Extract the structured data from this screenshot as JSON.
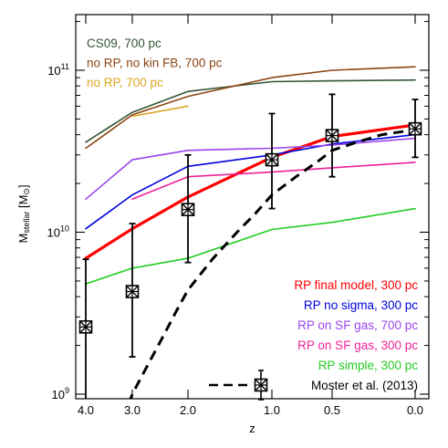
{
  "chart_data": {
    "type": "line",
    "title": "",
    "xlabel": "z",
    "ylabel": "M",
    "ylabel_sub": "stellar",
    "ylabel_unit_prefix": " [M",
    "ylabel_unit_suffix": "]",
    "y_scale": "log",
    "ylim": [
      1000000000.0,
      160000000000.0
    ],
    "x_ticks": [
      "4.0",
      "3.0",
      "2.0",
      "1.0",
      "0.5",
      "0.0"
    ],
    "y_ticks": [
      {
        "value": 1000000000.0,
        "base": "10",
        "exp": "9"
      },
      {
        "value": 10000000000.0,
        "base": "10",
        "exp": "10"
      },
      {
        "value": 100000000000.0,
        "base": "10",
        "exp": "11"
      }
    ],
    "grid": false,
    "series": [
      {
        "name": "CS09, 700 pc",
        "color": "#335533",
        "width": 1.6,
        "dash": "",
        "legend_loc": "top-left",
        "x": [
          "4.0",
          "3.0",
          "2.0",
          "1.0",
          "0.5",
          "0.0"
        ],
        "values": [
          36000000000.0,
          55000000000.0,
          74000000000.0,
          85000000000.0,
          86000000000.0,
          87000000000.0
        ]
      },
      {
        "name": "no RP, no kin FB, 700 pc",
        "color": "#8b4513",
        "width": 1.6,
        "dash": "",
        "legend_loc": "top-left",
        "x": [
          "4.0",
          "3.0",
          "2.0",
          "1.0",
          "0.5",
          "0.0"
        ],
        "values": [
          33000000000.0,
          53000000000.0,
          69000000000.0,
          90000000000.0,
          100000000000.0,
          105000000000.0
        ]
      },
      {
        "name": "no RP, 700 pc",
        "color": "#daa520",
        "width": 1.6,
        "dash": "",
        "legend_loc": "top-left",
        "x": [
          "3.0",
          "2.0"
        ],
        "values": [
          52000000000.0,
          60000000000.0
        ]
      },
      {
        "name": "RP final model, 300 pc",
        "color": "#ff0000",
        "width": 3.2,
        "dash": "",
        "legend_loc": "bottom-right",
        "x": [
          "4.0",
          "3.0",
          "2.0",
          "1.0",
          "0.5",
          "0.0"
        ],
        "values": [
          6900000000.0,
          10500000000.0,
          16500000000.0,
          29000000000.0,
          39000000000.0,
          46000000000.0
        ]
      },
      {
        "name": "RP no sigma, 300 pc",
        "color": "#0000dd",
        "width": 1.6,
        "dash": "",
        "legend_loc": "bottom-right",
        "x": [
          "4.0",
          "3.0",
          "2.0",
          "1.0",
          "0.5",
          "0.0"
        ],
        "values": [
          10500000000.0,
          17000000000.0,
          25500000000.0,
          30000000000.0,
          35000000000.0,
          40000000000.0
        ]
      },
      {
        "name": "RP on SF gas, 700 pc",
        "color": "#9944ee",
        "width": 1.6,
        "dash": "",
        "legend_loc": "bottom-right",
        "x": [
          "4.0",
          "3.0",
          "2.0",
          "1.0",
          "0.5",
          "0.0"
        ],
        "values": [
          16000000000.0,
          28000000000.0,
          32000000000.0,
          33000000000.0,
          34500000000.0,
          38000000000.0
        ]
      },
      {
        "name": "RP on SF gas, 300 pc",
        "color": "#ee2299",
        "width": 1.6,
        "dash": "",
        "legend_loc": "bottom-right",
        "x": [
          "3.0",
          "2.0",
          "1.0",
          "0.5",
          "0.0"
        ],
        "values": [
          16000000000.0,
          22000000000.0,
          23500000000.0,
          25000000000.0,
          27000000000.0
        ]
      },
      {
        "name": "RP simple, 300 pc",
        "color": "#22cc22",
        "width": 1.6,
        "dash": "",
        "legend_loc": "bottom-right",
        "x": [
          "4.0",
          "3.0",
          "2.0",
          "1.0",
          "0.5",
          "0.0"
        ],
        "values": [
          4800000000.0,
          6000000000.0,
          6900000000.0,
          10400000000.0,
          11500000000.0,
          14000000000.0
        ]
      }
    ],
    "moster": {
      "name": "Moster et al. (2013)",
      "color": "#000000",
      "curve_x": [
        3.2,
        3.0,
        2.8,
        2.5,
        2.2,
        2.0,
        1.7,
        1.4,
        1.2,
        1.0,
        0.8,
        0.6,
        0.5,
        0.35,
        0.2,
        0.0
      ],
      "curve_values": [
        700000000.0,
        1000000000.0,
        1350000000.0,
        2100000000.0,
        3300000000.0,
        4400000000.0,
        6900000000.0,
        10200000000.0,
        13000000000.0,
        17000000000.0,
        22000000000.0,
        28000000000.0,
        32000000000.0,
        36000000000.0,
        40000000000.0,
        43000000000.0
      ],
      "points": [
        {
          "x": "4.0",
          "value": 2600000000.0,
          "low": 900000000.0,
          "high": 6800000000.0
        },
        {
          "x": "3.0",
          "value": 4300000000.0,
          "low": 1700000000.0,
          "high": 11300000000.0
        },
        {
          "x": "2.0",
          "value": 13800000000.0,
          "low": 6500000000.0,
          "high": 30000000000.0
        },
        {
          "x": "1.0",
          "value": 28000000000.0,
          "low": 14000000000.0,
          "high": 54000000000.0
        },
        {
          "x": "0.5",
          "value": 39500000000.0,
          "low": 22000000000.0,
          "high": 71000000000.0
        },
        {
          "x": "0.0",
          "value": 43500000000.0,
          "low": 29000000000.0,
          "high": 66000000000.0
        }
      ]
    }
  }
}
